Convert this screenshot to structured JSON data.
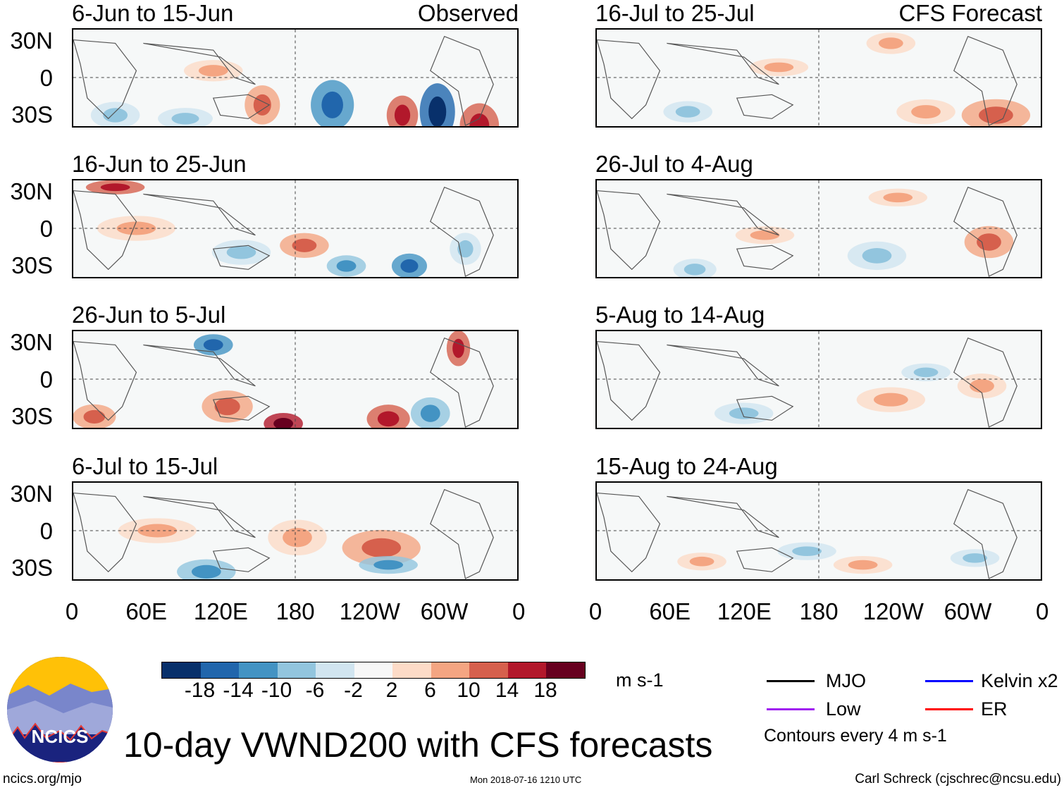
{
  "chart_data": {
    "type": "heatmap",
    "title": "10-day VWND200 with CFS forecasts",
    "units": "m s-1",
    "ytick_labels": [
      "30N",
      "0",
      "30S"
    ],
    "xtick_labels": [
      "0",
      "60E",
      "120E",
      "180",
      "120W",
      "60W",
      "0"
    ],
    "columns": [
      {
        "header": "Observed",
        "panels": [
          "6-Jun to 15-Jun",
          "16-Jun to 25-Jun",
          "26-Jun to 5-Jul",
          "6-Jul to 15-Jul"
        ]
      },
      {
        "header": "CFS Forecast",
        "panels": [
          "16-Jul to 25-Jul",
          "26-Jul to 4-Aug",
          "5-Aug to 14-Aug",
          "15-Aug to 24-Aug"
        ]
      }
    ],
    "colorbar": {
      "ticks": [
        "-18",
        "-14",
        "-10",
        "-6",
        "-2",
        "2",
        "6",
        "10",
        "14",
        "18"
      ],
      "colors": [
        "#08306b",
        "#2166ac",
        "#4393c3",
        "#92c5de",
        "#d1e5f0",
        "#f7f7f7",
        "#fddbc7",
        "#f4a582",
        "#d6604d",
        "#b2182b",
        "#67001f"
      ]
    },
    "legend": [
      {
        "label": "MJO",
        "color": "#000000"
      },
      {
        "label": "Kelvin x2",
        "color": "#0000ff"
      },
      {
        "label": "Low",
        "color": "#a020f0"
      },
      {
        "label": "ER",
        "color": "#ff0000"
      }
    ],
    "contour_note": "Contours every 4 m s-1"
  },
  "footer": {
    "logo_text": "NCICS",
    "url": "ncics.org/mjo",
    "timestamp": "Mon 2018-07-16 1210 UTC",
    "author": "Carl Schreck (cjschrec@ncsu.edu)"
  }
}
